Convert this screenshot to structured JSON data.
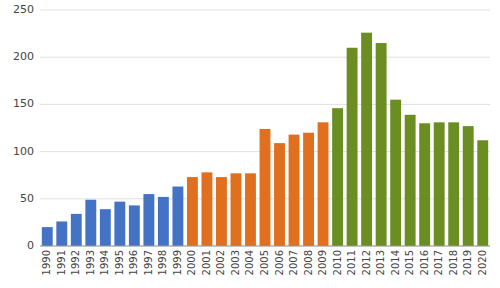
{
  "chart_data": {
    "type": "bar",
    "categories": [
      "1990",
      "1991",
      "1992",
      "1993",
      "1994",
      "1995",
      "1996",
      "1997",
      "1998",
      "1999",
      "2000",
      "2001",
      "2002",
      "2003",
      "2004",
      "2005",
      "2006",
      "2007",
      "2008",
      "2009",
      "2010",
      "2011",
      "2012",
      "2013",
      "2014",
      "2015",
      "2016",
      "2017",
      "2018",
      "2019",
      "2020"
    ],
    "values": [
      20,
      26,
      34,
      49,
      39,
      47,
      43,
      55,
      52,
      63,
      73,
      78,
      73,
      77,
      77,
      124,
      109,
      118,
      120,
      131,
      146,
      210,
      226,
      215,
      155,
      139,
      130,
      131,
      131,
      127,
      112
    ],
    "colors": [
      "#4472C4",
      "#4472C4",
      "#4472C4",
      "#4472C4",
      "#4472C4",
      "#4472C4",
      "#4472C4",
      "#4472C4",
      "#4472C4",
      "#4472C4",
      "#E07020",
      "#E07020",
      "#E07020",
      "#E07020",
      "#E07020",
      "#E07020",
      "#E07020",
      "#E07020",
      "#E07020",
      "#E07020",
      "#6B8E23",
      "#6B8E23",
      "#6B8E23",
      "#6B8E23",
      "#6B8E23",
      "#6B8E23",
      "#6B8E23",
      "#6B8E23",
      "#6B8E23",
      "#6B8E23",
      "#6B8E23"
    ],
    "ylim": [
      0,
      250
    ],
    "yticks": [
      0,
      50,
      100,
      150,
      200,
      250
    ],
    "grid": true
  }
}
